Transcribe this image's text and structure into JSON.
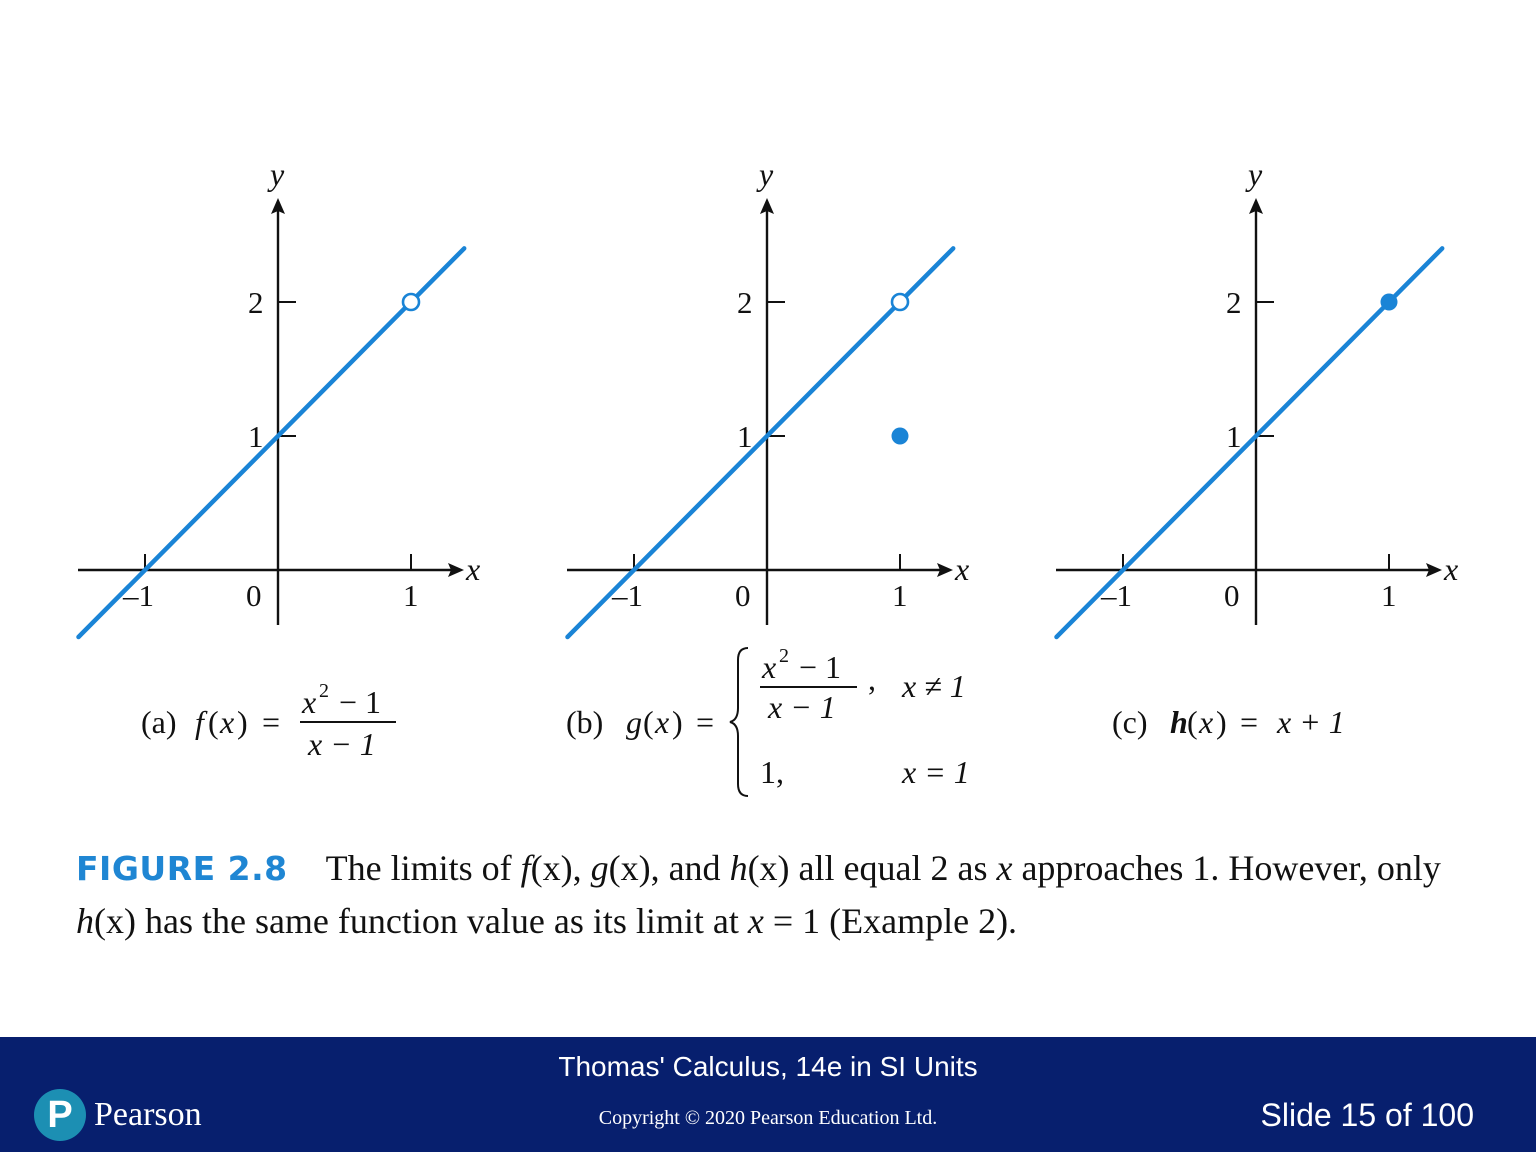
{
  "panels": [
    {
      "id": "a",
      "y_axis_label": "y",
      "x_axis_label": "x",
      "y_ticks": [
        "2",
        "1"
      ],
      "x_ticks": [
        "–1",
        "0",
        "1"
      ],
      "line": {
        "from": [
          -1.5,
          -0.5
        ],
        "to": [
          1.4,
          2.4
        ]
      },
      "open_points": [
        [
          1,
          2
        ]
      ],
      "filled_points": []
    },
    {
      "id": "b",
      "y_axis_label": "y",
      "x_axis_label": "x",
      "y_ticks": [
        "2",
        "1"
      ],
      "x_ticks": [
        "–1",
        "0",
        "1"
      ],
      "line": {
        "from": [
          -1.5,
          -0.5
        ],
        "to": [
          1.4,
          2.4
        ]
      },
      "open_points": [
        [
          1,
          2
        ]
      ],
      "filled_points": [
        [
          1,
          1
        ]
      ]
    },
    {
      "id": "c",
      "y_axis_label": "y",
      "x_axis_label": "x",
      "y_ticks": [
        "2",
        "1"
      ],
      "x_ticks": [
        "–1",
        "0",
        "1"
      ],
      "line": {
        "from": [
          -1.5,
          -0.5
        ],
        "to": [
          1.4,
          2.4
        ]
      },
      "open_points": [],
      "filled_points": [
        [
          1,
          2
        ]
      ]
    }
  ],
  "captions": {
    "a": {
      "label": "(a)",
      "func": "f",
      "var": "x",
      "num_base": "x",
      "num_exp": "2",
      "num_rest": " − 1",
      "den": "x − 1"
    },
    "b": {
      "label": "(b)",
      "func": "g",
      "var": "x",
      "case1_num_base": "x",
      "case1_num_exp": "2",
      "case1_num_rest": " − 1",
      "case1_den": "x − 1",
      "case1_cond": "x ≠ 1",
      "case2_val": "1,",
      "case2_cond": "x = 1"
    },
    "c": {
      "label": "(c)",
      "func": "h",
      "var": "x",
      "rhs": "x + 1"
    }
  },
  "figure_caption": {
    "label": "FIGURE 2.8",
    "text_1": "The limits of ",
    "f": "f",
    "text_2": "(x), ",
    "g": "g",
    "text_3": "(x), and ",
    "h": "h",
    "text_4": "(x) all equal 2 as ",
    "x": "x",
    "text_5": " approaches 1. However, only ",
    "h2": "h",
    "text_6": "(x) has the same function value as its limit at ",
    "x2": "x",
    "text_7": " = 1 (Example 2)."
  },
  "footer": {
    "title": "Thomas' Calculus, 14e in SI Units",
    "copyright": "Copyright © 2020 Pearson Education Ltd.",
    "slide": "Slide 15 of 100",
    "logo_letter": "P",
    "logo_text": "Pearson"
  },
  "colors": {
    "curve": "#1a84d6",
    "footer_bg": "#071f6e",
    "figure_label": "#1f86d3"
  }
}
